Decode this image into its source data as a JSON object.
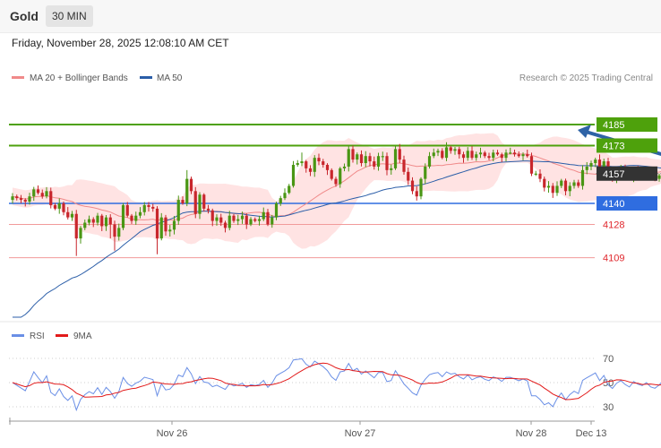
{
  "header": {
    "instrument": "Gold",
    "timeframe": "30 MIN",
    "datetime": "Friday, November 28, 2025 12:08:10 AM CET"
  },
  "legend": {
    "ma20_label": "MA 20 + Bollinger Bands",
    "ma50_label": "MA 50",
    "rsi_label": "RSI",
    "ma9_label": "9MA",
    "copyright": "Research © 2025 Trading Central"
  },
  "colors": {
    "resistance": "#4ea10c",
    "support": "#2f6de0",
    "minor_support": "#e0262c",
    "ma20": "#f08a8a",
    "ma50": "#2b5ea8",
    "bollinger_fill": "#ffe3e3",
    "arrow": "#2e63a6",
    "rsi": "#6a8fe6",
    "rsi_ma9": "#e21a1a",
    "bull": "#4a9614",
    "bear": "#c8262c"
  },
  "chart_data": [
    {
      "type": "candlestick",
      "title": "Gold",
      "timeframe": "30 MIN",
      "ylim": [
        4080,
        4200
      ],
      "levels": [
        {
          "value": 4185,
          "label": "4185",
          "role": "resistance"
        },
        {
          "value": 4173,
          "label": "4173",
          "role": "resistance"
        },
        {
          "value": 4157,
          "label": "4157",
          "role": "last price"
        },
        {
          "value": 4140,
          "label": "4140",
          "role": "support"
        },
        {
          "value": 4128,
          "label": "4128",
          "role": "support"
        },
        {
          "value": 4109,
          "label": "4109",
          "role": "support"
        }
      ],
      "x_ticks": [
        "Nov 26",
        "Nov 27",
        "Nov 28",
        "Dec 13"
      ],
      "last_close": 4157,
      "projection": {
        "from": 4157,
        "to": 4185
      },
      "legend": [
        "MA 20 + Bollinger Bands",
        "MA 50"
      ],
      "closes": [
        4144,
        4143,
        4142,
        4141,
        4144,
        4148,
        4146,
        4144,
        4147,
        4139,
        4137,
        4140,
        4135,
        4132,
        4134,
        4120,
        4126,
        4129,
        4131,
        4129,
        4133,
        4127,
        4132,
        4128,
        4121,
        4126,
        4139,
        4133,
        4130,
        4133,
        4135,
        4139,
        4138,
        4137,
        4120,
        4132,
        4124,
        4125,
        4130,
        4142,
        4140,
        4154,
        4147,
        4134,
        4145,
        4137,
        4136,
        4130,
        4132,
        4129,
        4126,
        4133,
        4130,
        4131,
        4133,
        4128,
        4131,
        4130,
        4131,
        4135,
        4128,
        4132,
        4140,
        4143,
        4146,
        4150,
        4162,
        4163,
        4164,
        4160,
        4158,
        4166,
        4164,
        4162,
        4159,
        4154,
        4151,
        4160,
        4161,
        4171,
        4165,
        4168,
        4163,
        4167,
        4164,
        4161,
        4167,
        4167,
        4159,
        4160,
        4171,
        4165,
        4158,
        4153,
        4147,
        4144,
        4154,
        4161,
        4167,
        4169,
        4170,
        4166,
        4172,
        4170,
        4171,
        4168,
        4166,
        4170,
        4166,
        4168,
        4169,
        4167,
        4166,
        4169,
        4168,
        4166,
        4169,
        4169,
        4168,
        4167,
        4168,
        4167,
        4157,
        4157,
        4154,
        4149,
        4150,
        4146,
        4150,
        4153,
        4147,
        4150,
        4152,
        4150,
        4159,
        4161,
        4163,
        4165,
        4160,
        4164,
        4157,
        4154,
        4158,
        4160,
        4157,
        4155,
        4159,
        4157,
        4156,
        4158,
        4155,
        4154,
        4156,
        4159,
        4156,
        4157,
        4161,
        4154,
        4157,
        4155,
        4156,
        4156,
        4157,
        4155,
        4156,
        4157,
        4158,
        4157
      ]
    },
    {
      "type": "line",
      "title": "RSI",
      "ylim": [
        20,
        80
      ],
      "y_ticks": [
        30,
        50,
        70
      ],
      "legend": [
        "RSI",
        "9MA"
      ]
    }
  ]
}
